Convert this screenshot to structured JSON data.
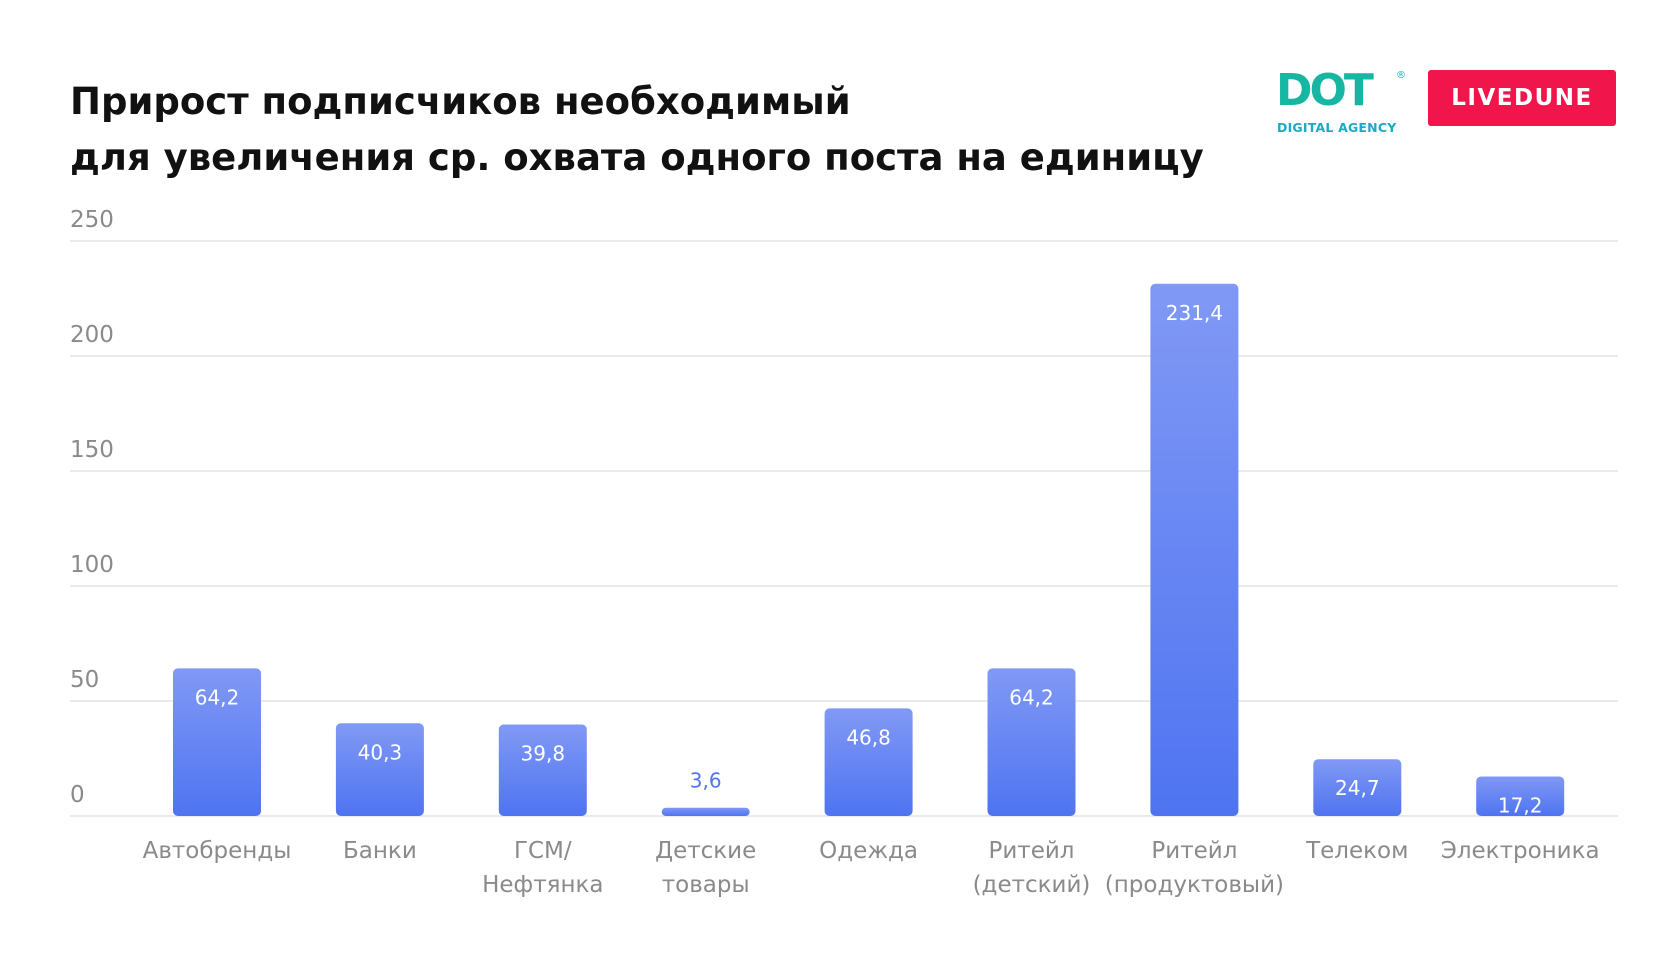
{
  "title_lines": [
    "Прирост подписчиков необходимый",
    "для увеличения ср. охвата одного поста на единицу"
  ],
  "logos": {
    "dot_word": "DOT",
    "dot_registered": "®",
    "dot_tagline": "DIGITAL AGENCY",
    "livedune": "LIVEDUNE"
  },
  "colors": {
    "bar_top": "#8199f5",
    "bar_bottom": "#4f74f1",
    "label_inside": "#ffffff",
    "label_outside": "#4f74f1",
    "grid": "#e4e4e4",
    "axis_text": "#8a8a8a",
    "dot_green": "#16b6a3",
    "dot_blue": "#1aa9c7",
    "livedune_red": "#f0164c"
  },
  "chart_data": {
    "type": "bar",
    "title": "Прирост подписчиков необходимый для увеличения ср. охвата одного поста на единицу",
    "xlabel": "",
    "ylabel": "",
    "ylim": [
      0,
      250
    ],
    "yticks": [
      0,
      50,
      100,
      150,
      200,
      250
    ],
    "grid": true,
    "categories": [
      [
        "Автобренды"
      ],
      [
        "Банки"
      ],
      [
        "ГСМ/",
        "Нефтянка"
      ],
      [
        "Детские",
        "товары"
      ],
      [
        "Одежда"
      ],
      [
        "Ритейл",
        "(детский)"
      ],
      [
        "Ритейл",
        "(продуктовый)"
      ],
      [
        "Телеком"
      ],
      [
        "Электроника"
      ]
    ],
    "values": [
      64.2,
      40.3,
      39.8,
      3.6,
      46.8,
      64.2,
      231.4,
      24.7,
      17.2
    ],
    "value_labels": [
      "64,2",
      "40,3",
      "39,8",
      "3,6",
      "46,8",
      "64,2",
      "231,4",
      "24,7",
      "17,2"
    ]
  }
}
